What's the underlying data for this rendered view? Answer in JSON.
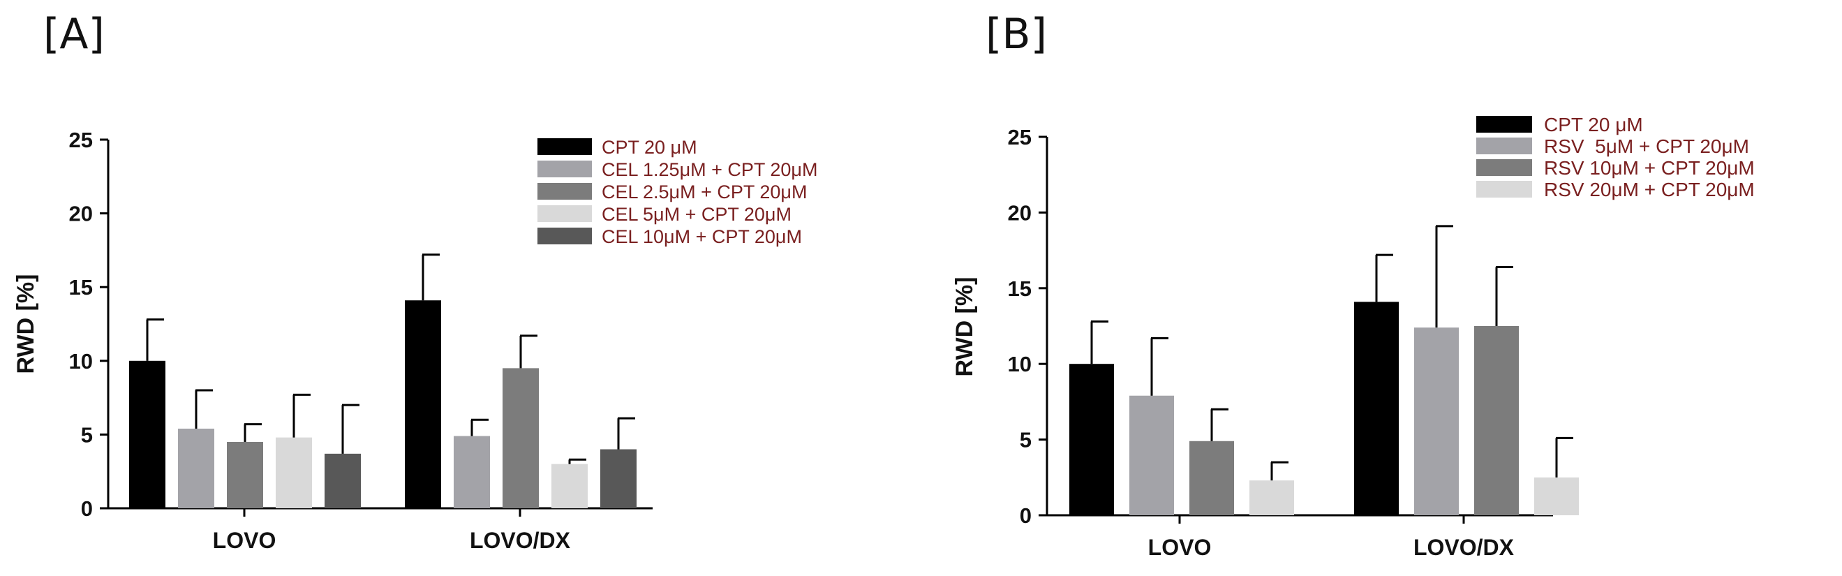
{
  "panels": {
    "a_label": "[A]",
    "b_label": "[B]"
  },
  "colors": {
    "black": "#000000",
    "light_gray": "#a3a3a8",
    "mid_gray": "#7c7c7c",
    "very_light_gray": "#d9d9d9",
    "dark_gray": "#585858",
    "legend_text": "#7a2020"
  },
  "chart_data": [
    {
      "type": "bar",
      "panel": "A",
      "title": "",
      "xlabel": "",
      "ylabel": "RWD [%]",
      "ylim": [
        0,
        25
      ],
      "yticks": [
        "0",
        "5",
        "10",
        "15",
        "20",
        "25"
      ],
      "categories": [
        "LOVO",
        "LOVO/DX"
      ],
      "legend_position": "top-right",
      "series": [
        {
          "name": "CPT 20 μM",
          "color": "#000000",
          "values": [
            10.0,
            14.1
          ],
          "errors": [
            2.8,
            3.1
          ]
        },
        {
          "name": "CEL 1.25μM + CPT 20μM",
          "color": "#a3a3a8",
          "values": [
            5.4,
            4.9
          ],
          "errors": [
            2.6,
            1.1
          ]
        },
        {
          "name": "CEL 2.5μM + CPT 20μM",
          "color": "#7c7c7c",
          "values": [
            4.5,
            9.5
          ],
          "errors": [
            1.2,
            2.2
          ]
        },
        {
          "name": "CEL 5μM + CPT 20μM",
          "color": "#d9d9d9",
          "values": [
            4.8,
            3.0
          ],
          "errors": [
            2.9,
            0.3
          ]
        },
        {
          "name": "CEL 10μM + CPT 20μM",
          "color": "#585858",
          "values": [
            3.7,
            4.0
          ],
          "errors": [
            3.3,
            2.1
          ]
        }
      ]
    },
    {
      "type": "bar",
      "panel": "B",
      "title": "",
      "xlabel": "",
      "ylabel": "RWD [%]",
      "ylim": [
        0,
        25
      ],
      "yticks": [
        "0",
        "5",
        "10",
        "15",
        "20",
        "25"
      ],
      "categories": [
        "LOVO",
        "LOVO/DX"
      ],
      "legend_position": "top-right",
      "series": [
        {
          "name": "CPT 20 μM",
          "color": "#000000",
          "values": [
            10.0,
            14.1
          ],
          "errors": [
            2.8,
            3.1
          ]
        },
        {
          "name": "RSV  5μM + CPT 20μM",
          "color": "#a3a3a8",
          "values": [
            7.9,
            12.4
          ],
          "errors": [
            3.8,
            6.7
          ]
        },
        {
          "name": "RSV 10μM + CPT 20μM",
          "color": "#7c7c7c",
          "values": [
            4.9,
            12.5
          ],
          "errors": [
            2.1,
            3.9
          ]
        },
        {
          "name": "RSV 20μM + CPT 20μM",
          "color": "#d9d9d9",
          "values": [
            2.3,
            2.5
          ],
          "errors": [
            1.2,
            2.6
          ]
        }
      ]
    }
  ]
}
